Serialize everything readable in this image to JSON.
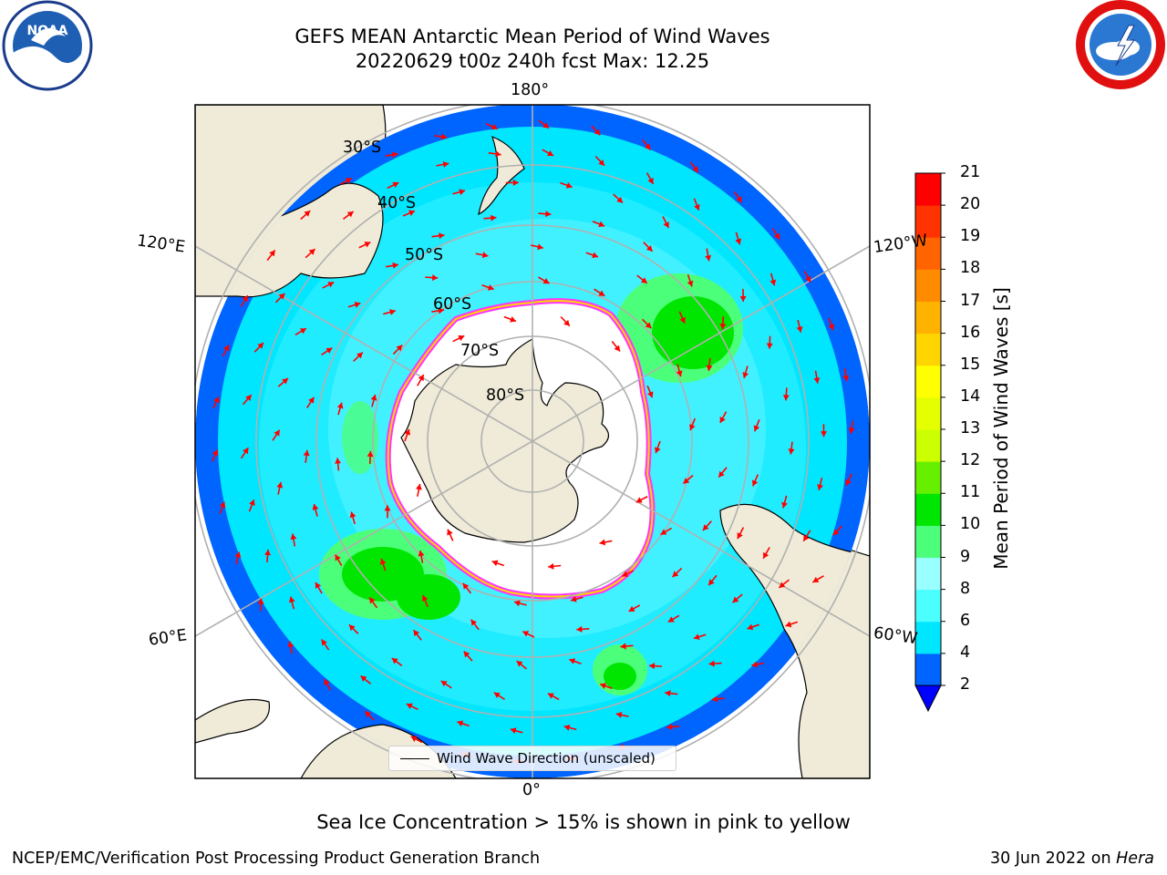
{
  "header": {
    "title_line1": "GEFS MEAN Antarctic Mean Period of Wind Waves",
    "title_line2": "20220629 t00z 240h fcst   Max: 12.25"
  },
  "logos": {
    "left": {
      "icon": "noaa-logo-icon",
      "text": "NOAA"
    },
    "right": {
      "icon": "national-weather-service-logo-icon"
    }
  },
  "map": {
    "projection": "south-polar-stereographic",
    "longitude_labels": {
      "top": "180°",
      "bottom": "0°",
      "upper_left": "120°E",
      "lower_left": "60°E",
      "upper_right": "120°W",
      "lower_right": "60°W"
    },
    "latitude_labels": [
      "30°S",
      "40°S",
      "50°S",
      "60°S",
      "70°S",
      "80°S"
    ],
    "legend_label": "Wind Wave Direction (unscaled)",
    "colors": {
      "land": "#efebd8",
      "ice": "#ffffff",
      "ice_edge": "#ff33ff",
      "arrow": "#ff0000",
      "grid": "#b0b0b0"
    }
  },
  "colorbar": {
    "title": "Mean Period of Wind Waves [s]",
    "ticks": [
      "2",
      "4",
      "6",
      "8",
      "9",
      "10",
      "11",
      "12",
      "13",
      "14",
      "15",
      "16",
      "17",
      "18",
      "19",
      "20",
      "21"
    ],
    "band_colors": [
      "#0064ff",
      "#00e6ff",
      "#4cffff",
      "#99ffff",
      "#4cff7a",
      "#00e600",
      "#66f000",
      "#ccff00",
      "#e6ff00",
      "#ffff00",
      "#ffd500",
      "#ffb300",
      "#ff8c00",
      "#ff6400",
      "#ff3300",
      "#ff0000"
    ],
    "under_color": "#0000ff"
  },
  "footer": {
    "caption": "Sea Ice Concentration > 15% is shown in pink to yellow",
    "left": "NCEP/EMC/Verification Post Processing Product Generation Branch",
    "date": "30 Jun 2022 on ",
    "machine": "Hera"
  }
}
